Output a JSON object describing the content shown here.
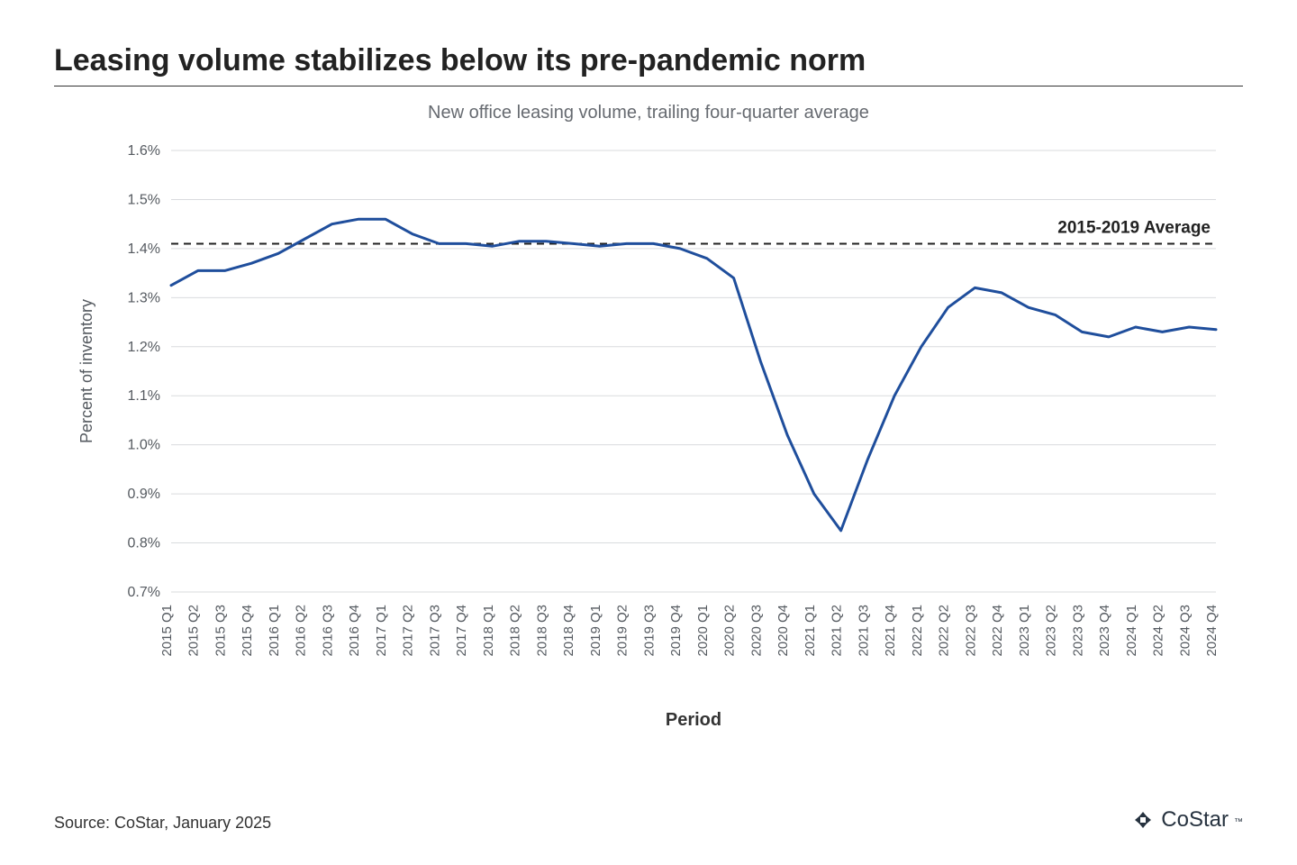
{
  "title": "Leasing volume stabilizes below its pre-pandemic norm",
  "subtitle": "New office leasing volume, trailing four-quarter average",
  "source": "Source: CoStar, January 2025",
  "brand": {
    "name": "CoStar",
    "tm": "™",
    "icon_color": "#26323f"
  },
  "chart": {
    "type": "line",
    "x_axis_label": "Period",
    "y_axis_label": "Percent of inventory",
    "ylim": [
      0.7,
      1.6
    ],
    "ytick_step": 0.1,
    "ytick_format_suffix": "%",
    "yticks": [
      0.7,
      0.8,
      0.9,
      1.0,
      1.1,
      1.2,
      1.3,
      1.4,
      1.5,
      1.6
    ],
    "grid_color": "#d9dbde",
    "background_color": "#ffffff",
    "line_color": "#1f4e9c",
    "line_width": 3,
    "reference_line": {
      "value": 1.41,
      "label": "2015-2019 Average",
      "color": "#222222",
      "dash": "8,6",
      "width": 2
    },
    "categories": [
      "2015 Q1",
      "2015 Q2",
      "2015 Q3",
      "2015 Q4",
      "2016 Q1",
      "2016 Q2",
      "2016 Q3",
      "2016 Q4",
      "2017 Q1",
      "2017 Q2",
      "2017 Q3",
      "2017 Q4",
      "2018 Q1",
      "2018 Q2",
      "2018 Q3",
      "2018 Q4",
      "2019 Q1",
      "2019 Q2",
      "2019 Q3",
      "2019 Q4",
      "2020 Q1",
      "2020 Q2",
      "2020 Q3",
      "2020 Q4",
      "2021 Q1",
      "2021 Q2",
      "2021 Q3",
      "2021 Q4",
      "2022 Q1",
      "2022 Q2",
      "2022 Q3",
      "2022 Q4",
      "2023 Q1",
      "2023 Q2",
      "2023 Q3",
      "2023 Q4",
      "2024 Q1",
      "2024 Q2",
      "2024 Q3",
      "2024 Q4"
    ],
    "values": [
      1.325,
      1.355,
      1.355,
      1.37,
      1.39,
      1.42,
      1.45,
      1.46,
      1.46,
      1.43,
      1.41,
      1.41,
      1.405,
      1.415,
      1.415,
      1.41,
      1.405,
      1.41,
      1.41,
      1.4,
      1.38,
      1.34,
      1.17,
      1.02,
      0.9,
      0.825,
      0.97,
      1.1,
      1.2,
      1.28,
      1.32,
      1.31,
      1.28,
      1.265,
      1.23,
      1.22,
      1.24,
      1.23,
      1.24,
      1.235
    ],
    "label_fontsize": 18,
    "tick_fontsize": 16
  }
}
